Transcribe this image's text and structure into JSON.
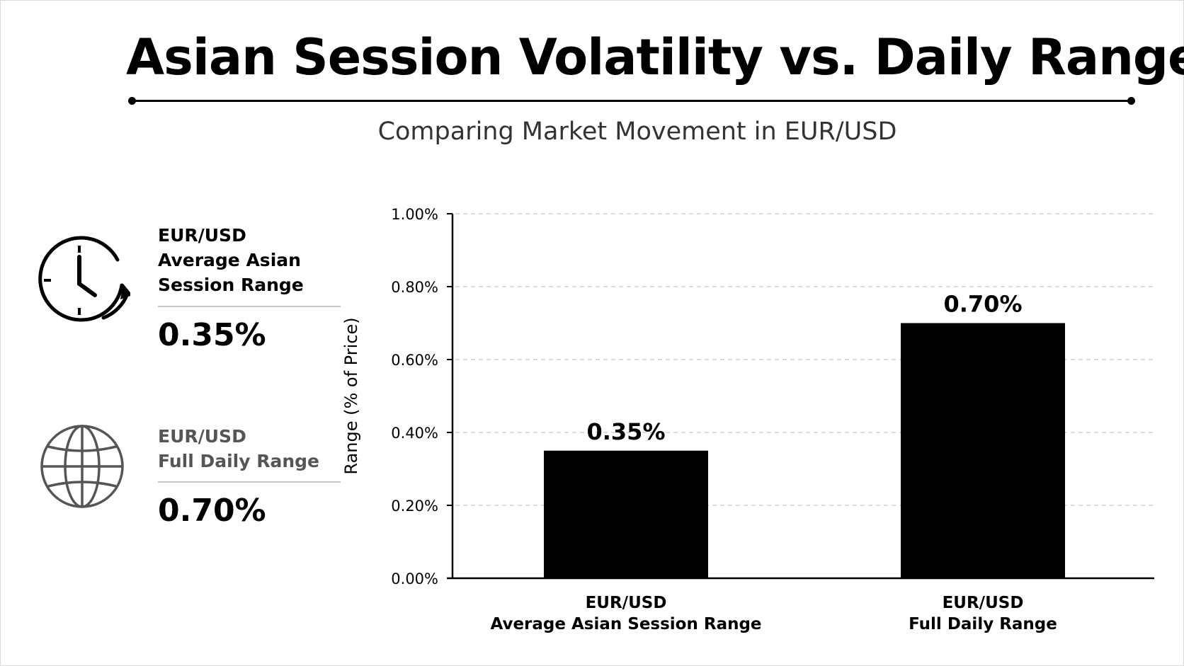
{
  "header": {
    "title": "Asian Session Volatility vs. Daily Range",
    "subtitle": "Comparing Market Movement in EUR/USD"
  },
  "stats": [
    {
      "icon": "clock-icon",
      "label_lines": [
        "EUR/USD",
        "Average Asian",
        "Session Range"
      ],
      "value": "0.35%"
    },
    {
      "icon": "globe-icon",
      "label_lines": [
        "EUR/USD",
        "Full Daily Range"
      ],
      "value": "0.70%"
    }
  ],
  "chart_data": {
    "type": "bar",
    "categories": [
      [
        "EUR/USD",
        "Average Asian Session Range"
      ],
      [
        "EUR/USD",
        "Full Daily Range"
      ]
    ],
    "values": [
      0.35,
      0.7
    ],
    "data_labels": [
      "0.35%",
      "0.70%"
    ],
    "ylabel": "Range (% of Price)",
    "ylim": [
      0,
      1.0
    ],
    "yticks": [
      0.0,
      0.2,
      0.4,
      0.6,
      0.8,
      1.0
    ],
    "ytick_labels": [
      "0.00%",
      "0.20%",
      "0.40%",
      "0.60%",
      "0.80%",
      "1.00%"
    ],
    "grid": "horizontal-dashed",
    "bar_color": "#000000",
    "grid_color": "#c8c8c8"
  }
}
